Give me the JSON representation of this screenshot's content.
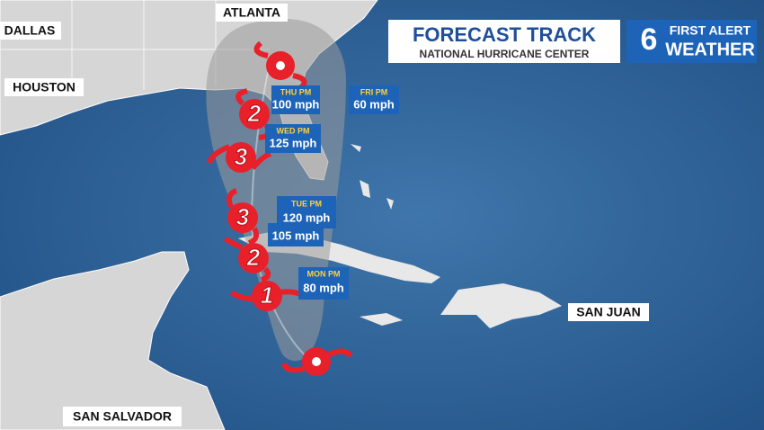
{
  "header": {
    "title": "FORECAST TRACK",
    "subtitle": "National Hurricane Center"
  },
  "logo": {
    "number": "6",
    "line1": "FIRST ALERT",
    "line2": "WEATHER"
  },
  "cities": [
    "ATLANTA",
    "DALLAS",
    "HOUSTON",
    "SAN JUAN",
    "SAN SALVADOR"
  ],
  "forecast": [
    {
      "day": "THU PM",
      "speed": "100 mph"
    },
    {
      "day": "FRI PM",
      "speed": "60 mph"
    },
    {
      "day": "WED PM",
      "speed": "125 mph"
    },
    {
      "day": "TUE PM",
      "speed": "120 mph"
    },
    {
      "speed": "105 mph"
    },
    {
      "day": "MON PM",
      "speed": "80 mph"
    }
  ],
  "categories": [
    "2",
    "3",
    "3",
    "2",
    "1"
  ]
}
